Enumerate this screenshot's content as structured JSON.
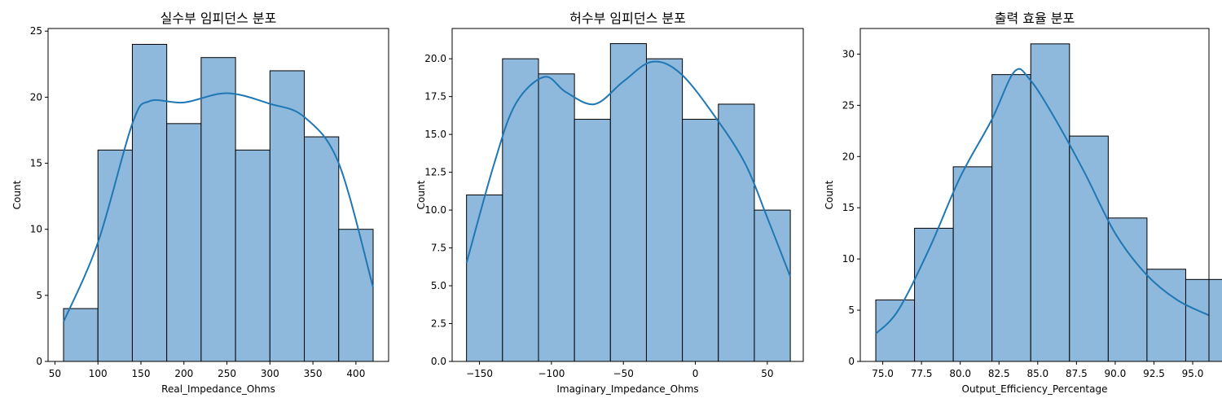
{
  "chart_data": [
    {
      "type": "histogram",
      "title": "실수부 임피던스 분포",
      "xlabel": "Real_Impedance_Ohms",
      "ylabel": "Count",
      "xlim": [
        42,
        438
      ],
      "ylim": [
        0,
        25.2
      ],
      "xticks": [
        50,
        100,
        150,
        200,
        250,
        300,
        350,
        400
      ],
      "yticks": [
        0,
        5,
        10,
        15,
        20,
        25
      ],
      "bin_edges": [
        60,
        100,
        140,
        180,
        220,
        260,
        300,
        340,
        380,
        420
      ],
      "counts": [
        4,
        16,
        24,
        18,
        23,
        16,
        22,
        17,
        10
      ],
      "kde": [
        [
          60,
          3
        ],
        [
          100,
          9
        ],
        [
          140,
          18
        ],
        [
          160,
          19.7
        ],
        [
          200,
          19.6
        ],
        [
          250,
          20.3
        ],
        [
          300,
          19.5
        ],
        [
          340,
          18.5
        ],
        [
          380,
          15
        ],
        [
          420,
          5.6
        ]
      ],
      "color": "#1f77b4",
      "bar_fill": "#8fb9dc"
    },
    {
      "type": "histogram",
      "title": "허수부 임피던스 분포",
      "xlabel": "Imaginary_Impedance_Ohms",
      "ylabel": "Count",
      "xlim": [
        -169,
        75
      ],
      "ylim": [
        0,
        22
      ],
      "xticks": [
        -150,
        -100,
        -50,
        0,
        50
      ],
      "ytick_labels": [
        "0.0",
        "2.5",
        "5.0",
        "7.5",
        "10.0",
        "12.5",
        "15.0",
        "17.5",
        "20.0"
      ],
      "yticks": [
        0,
        2.5,
        5,
        7.5,
        10,
        12.5,
        15,
        17.5,
        20
      ],
      "bin_edges": [
        -159,
        -134,
        -109,
        -84,
        -59,
        -34,
        -9,
        16,
        41,
        66
      ],
      "counts": [
        11,
        20,
        19,
        16,
        21,
        20,
        16,
        17,
        10
      ],
      "kde": [
        [
          -159,
          6.5
        ],
        [
          -140,
          13
        ],
        [
          -125,
          17
        ],
        [
          -105,
          18.8
        ],
        [
          -90,
          17.8
        ],
        [
          -70,
          17
        ],
        [
          -50,
          18.5
        ],
        [
          -30,
          19.8
        ],
        [
          -10,
          19
        ],
        [
          15,
          16
        ],
        [
          35,
          13
        ],
        [
          50,
          9.5
        ],
        [
          66,
          5.6
        ]
      ],
      "color": "#1f77b4",
      "bar_fill": "#8fb9dc"
    },
    {
      "type": "histogram",
      "title": "출력 효율 분포",
      "xlabel": "Output_Efficiency_Percentage",
      "ylabel": "Count",
      "xlim": [
        73.55,
        96.05
      ],
      "ylim": [
        0,
        32.5
      ],
      "xticks": [
        75,
        77.5,
        80,
        82.5,
        85,
        87.5,
        90,
        92.5,
        95
      ],
      "xtick_labels": [
        "75.0",
        "77.5",
        "80.0",
        "82.5",
        "85.0",
        "87.5",
        "90.0",
        "92.5",
        "95.0"
      ],
      "yticks": [
        0,
        5,
        10,
        15,
        20,
        25,
        30
      ],
      "bin_edges": [
        74.55,
        77.05,
        79.55,
        82.05,
        84.55,
        87.05,
        89.55,
        92.05,
        94.55,
        97.05
      ],
      "counts": [
        6,
        13,
        19,
        28,
        31,
        22,
        14,
        9,
        8
      ],
      "kde": [
        [
          74.55,
          2.7
        ],
        [
          76,
          5
        ],
        [
          78,
          11
        ],
        [
          80,
          18
        ],
        [
          82,
          23.5
        ],
        [
          83.5,
          28.3
        ],
        [
          84.5,
          27.5
        ],
        [
          86,
          24
        ],
        [
          88,
          18.5
        ],
        [
          90,
          12.5
        ],
        [
          92,
          8.5
        ],
        [
          94,
          6
        ],
        [
          96.05,
          4.5
        ]
      ],
      "color": "#1f77b4",
      "bar_fill": "#8fb9dc"
    }
  ]
}
